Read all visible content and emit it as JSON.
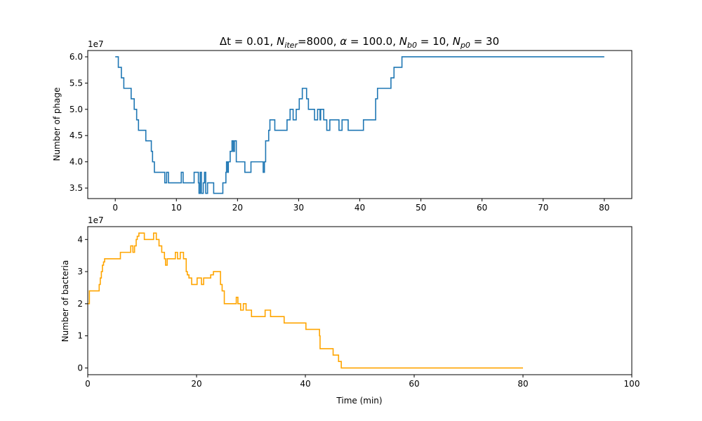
{
  "colors": {
    "phage": "#1f77b4",
    "bacteria": "#ffa500",
    "axis": "#000000",
    "background": "#ffffff"
  },
  "chart_data": [
    {
      "type": "line",
      "title": "Δt = 0.01, N_iter=8000, α = 100.0, N_b0 = 10, N_p0 = 30",
      "title_parts": {
        "dt": "Δt",
        "dt_value": " = 0.01, ",
        "n": "N",
        "iter_sub": "iter",
        "iter_value": "=8000, ",
        "alpha": "α",
        "alpha_value": " = 100.0, ",
        "b0_sub": "b0",
        "b0_value": " = 10, ",
        "p0_sub": "p0",
        "p0_value": " = 30"
      },
      "xlabel": "",
      "ylabel": "Number of phage",
      "scale_label": "1e7",
      "xlim": [
        -4.5,
        84.5
      ],
      "ylim": [
        3.3,
        6.12
      ],
      "xticks": [
        0,
        10,
        20,
        30,
        40,
        50,
        60,
        70,
        80
      ],
      "xtick_labels": [
        "0",
        "10",
        "20",
        "30",
        "40",
        "50",
        "60",
        "70",
        "80"
      ],
      "yticks": [
        3.5,
        4.0,
        4.5,
        5.0,
        5.5,
        6.0
      ],
      "ytick_labels": [
        "3.5",
        "4.0",
        "4.5",
        "5.0",
        "5.5",
        "6.0"
      ],
      "series": [
        {
          "name": "phage",
          "step": true,
          "x": [
            0,
            0.5,
            1,
            1.4,
            1.8,
            2.6,
            3.1,
            3.5,
            3.8,
            4.3,
            5.0,
            5.9,
            6.1,
            6.4,
            8.1,
            8.4,
            8.7,
            9.1,
            10.6,
            10.8,
            11.1,
            12.4,
            12.9,
            13.6,
            13.7,
            13.9,
            14.1,
            14.4,
            14.6,
            14.8,
            15.1,
            16.1,
            16.3,
            17.6,
            18.1,
            18.2,
            18.4,
            18.5,
            18.6,
            18.8,
            19.1,
            19.3,
            19.5,
            19.8,
            20.1,
            21.2,
            21.3,
            22.2,
            23.1,
            24.1,
            24.2,
            24.4,
            24.6,
            25.1,
            25.3,
            25.6,
            26.1,
            26.6,
            27.1,
            28.1,
            28.6,
            29.1,
            29.6,
            30.1,
            30.6,
            31.1,
            31.3,
            31.6,
            32.1,
            32.6,
            33.1,
            33.5,
            33.6,
            34.1,
            34.6,
            35.1,
            35.6,
            36.6,
            37.1,
            38.1,
            40.1,
            40.6,
            42.1,
            42.6,
            42.9,
            43.1,
            45.1,
            45.6,
            46.1,
            46.9,
            47.1,
            80
          ],
          "values": [
            6.0,
            5.8,
            5.6,
            5.4,
            5.4,
            5.2,
            5.0,
            4.8,
            4.6,
            4.6,
            4.4,
            4.2,
            4.0,
            3.8,
            3.6,
            3.8,
            3.6,
            3.6,
            3.6,
            3.8,
            3.6,
            3.6,
            3.8,
            3.6,
            3.4,
            3.8,
            3.4,
            3.6,
            3.8,
            3.4,
            3.6,
            3.4,
            3.4,
            3.6,
            3.8,
            4.0,
            3.8,
            4.0,
            4.0,
            4.2,
            4.4,
            4.2,
            4.4,
            4.0,
            4.0,
            3.8,
            3.8,
            4.0,
            4.0,
            4.0,
            3.8,
            4.0,
            4.4,
            4.6,
            4.8,
            4.8,
            4.6,
            4.6,
            4.6,
            4.8,
            5.0,
            4.8,
            5.0,
            5.2,
            5.4,
            5.4,
            5.2,
            5.0,
            5.0,
            4.8,
            5.0,
            4.8,
            5.0,
            4.8,
            4.6,
            4.8,
            4.8,
            4.6,
            4.8,
            4.6,
            4.6,
            4.8,
            4.8,
            5.2,
            5.4,
            5.4,
            5.6,
            5.8,
            5.8,
            6.0,
            6.0,
            6.0
          ]
        }
      ]
    },
    {
      "type": "line",
      "title": "",
      "xlabel": "Time (min)",
      "ylabel": "Number of bacteria",
      "scale_label": "1e7",
      "xlim": [
        0,
        100
      ],
      "ylim": [
        -0.21,
        4.4
      ],
      "xticks": [
        0,
        20,
        40,
        60,
        80,
        100
      ],
      "xtick_labels": [
        "0",
        "20",
        "40",
        "60",
        "80",
        "100"
      ],
      "yticks": [
        0,
        1,
        2,
        3,
        4
      ],
      "ytick_labels": [
        "0",
        "1",
        "2",
        "3",
        "4"
      ],
      "series": [
        {
          "name": "bacteria",
          "step": true,
          "x": [
            0,
            0.3,
            2.1,
            2.3,
            2.5,
            2.7,
            2.9,
            3.1,
            6.0,
            7.9,
            8.3,
            8.6,
            8.9,
            9.1,
            9.4,
            10.4,
            12.1,
            12.6,
            13.1,
            13.6,
            14.1,
            14.3,
            14.6,
            15.6,
            16.1,
            16.5,
            17.0,
            17.6,
            18.1,
            18.3,
            18.6,
            19.1,
            20.1,
            20.9,
            21.3,
            22.1,
            22.6,
            23.1,
            24.4,
            24.7,
            25.1,
            27.1,
            27.3,
            27.6,
            28.1,
            28.6,
            29.1,
            30.1,
            31.1,
            32.6,
            33.6,
            34.1,
            36.1,
            37.6,
            40.1,
            42.6,
            42.7,
            45.1,
            45.6,
            46.1,
            46.6,
            47.1,
            80
          ],
          "values": [
            2.0,
            2.4,
            2.6,
            2.8,
            3.0,
            3.2,
            3.3,
            3.4,
            3.6,
            3.8,
            3.6,
            3.8,
            4.0,
            4.1,
            4.2,
            4.0,
            4.2,
            4.0,
            3.8,
            3.6,
            3.4,
            3.2,
            3.4,
            3.4,
            3.6,
            3.4,
            3.6,
            3.4,
            3.0,
            2.9,
            2.8,
            2.6,
            2.8,
            2.6,
            2.8,
            2.8,
            2.9,
            3.0,
            2.6,
            2.4,
            2.0,
            2.0,
            2.2,
            2.0,
            1.8,
            2.0,
            1.8,
            1.6,
            1.6,
            1.8,
            1.6,
            1.6,
            1.4,
            1.4,
            1.2,
            1.0,
            0.6,
            0.4,
            0.4,
            0.2,
            0.0,
            0.0,
            0.0
          ]
        }
      ]
    }
  ]
}
